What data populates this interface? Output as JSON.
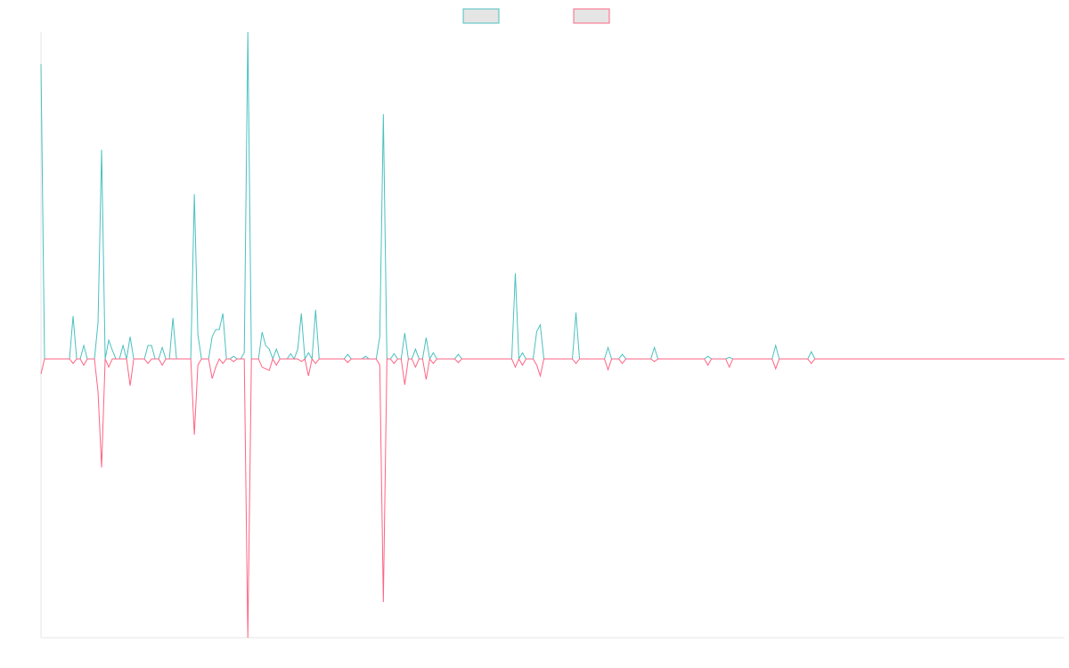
{
  "chart_data": {
    "type": "line",
    "legend": "top",
    "ylim": [
      -85.3,
      100
    ],
    "series": [
      {
        "color": "#4bc0c0",
        "values": [
          90.2,
          0,
          0,
          0,
          0,
          0,
          0,
          0,
          0,
          13.1,
          0,
          0,
          4.1,
          0,
          0,
          0,
          11.2,
          64.0,
          0,
          5.7,
          2.7,
          0,
          0,
          4.1,
          0,
          6.8,
          0,
          0,
          0,
          0,
          4.1,
          4.1,
          0,
          0,
          3.5,
          0,
          0,
          12.5,
          0,
          0,
          0,
          0,
          0,
          50.4,
          7.4,
          0,
          0,
          0,
          6.8,
          9.0,
          9.0,
          13.9,
          0,
          0,
          0.8,
          0,
          0,
          1.9,
          100,
          0,
          0,
          0,
          8.2,
          4.1,
          3.0,
          0,
          3.0,
          0,
          0,
          0,
          1.6,
          0,
          3.0,
          13.9,
          0,
          1.9,
          0,
          15.0,
          0,
          0,
          0,
          0,
          0,
          0,
          0,
          0,
          1.4,
          0,
          0,
          0,
          0,
          0.8,
          0,
          0,
          0,
          6.8,
          74.9,
          0,
          0,
          1.6,
          0,
          0,
          7.9,
          0,
          0,
          3.0,
          0,
          0,
          6.5,
          0,
          1.9,
          0,
          0,
          0,
          0,
          0,
          0,
          1.4,
          0,
          0,
          0,
          0,
          0,
          0,
          0,
          0,
          0,
          0,
          0,
          0,
          0,
          0,
          0,
          26.2,
          0,
          1.9,
          0,
          0,
          0,
          8.4,
          10.4,
          0,
          0,
          0,
          0,
          0,
          0,
          0,
          0,
          0,
          14.2,
          0,
          0,
          0,
          0,
          0,
          0,
          0,
          0,
          3.5,
          0,
          0,
          0,
          1.4,
          0,
          0,
          0,
          0,
          0,
          0,
          0,
          0,
          3.5,
          0,
          0,
          0,
          0,
          0,
          0,
          0,
          0,
          0,
          0,
          0,
          0,
          0,
          0,
          0.8,
          0,
          0,
          0,
          0,
          0,
          0.5,
          0,
          0,
          0,
          0,
          0,
          0,
          0,
          0,
          0,
          0,
          0,
          0,
          4.1,
          0,
          0,
          0,
          0,
          0,
          0,
          0,
          0,
          0,
          2.2,
          0,
          0,
          0,
          0,
          0,
          0,
          0,
          0,
          0,
          0,
          0,
          0,
          0,
          0,
          0,
          0,
          0,
          0,
          0,
          0,
          0,
          0,
          0,
          0,
          0,
          0,
          0,
          0,
          0,
          0,
          0,
          0,
          0,
          0,
          0,
          0,
          0,
          0,
          0,
          0,
          0,
          0,
          0,
          0,
          0,
          0,
          0,
          0,
          0,
          0,
          0,
          0,
          0,
          0,
          0,
          0,
          0,
          0,
          0,
          0,
          0,
          0,
          0,
          0,
          0,
          0,
          0,
          0,
          0,
          0,
          0
        ]
      },
      {
        "color": "#ff6384",
        "values": [
          -4.6,
          0,
          0,
          0,
          0,
          0,
          0,
          0,
          0,
          -1.4,
          0,
          0,
          -1.9,
          0,
          0,
          0,
          -10.1,
          -33.2,
          0,
          -2.5,
          0,
          0,
          0,
          0,
          0,
          -8.2,
          0,
          0,
          0,
          0,
          -1.4,
          0,
          0,
          0,
          -1.9,
          0,
          0,
          0,
          0,
          0,
          0,
          0,
          0,
          -23.2,
          -1.9,
          0,
          0,
          0,
          -6.0,
          -2.5,
          0,
          -1.4,
          0,
          0,
          -0.8,
          0,
          0,
          0,
          -85.3,
          0,
          0,
          0,
          -2.5,
          -3.0,
          -3.5,
          0,
          -1.9,
          0,
          0,
          0,
          0,
          0,
          0,
          -0.8,
          0,
          -5.2,
          0,
          -1.4,
          0,
          0,
          0,
          0,
          0,
          0,
          0,
          0,
          -1.1,
          0,
          0,
          0,
          0,
          0,
          0,
          0,
          0,
          -1.9,
          -74.4,
          0,
          0,
          -1.4,
          0,
          0,
          -7.9,
          0,
          0,
          -2.5,
          0,
          0,
          -6.3,
          0,
          -1.4,
          0,
          0,
          0,
          0,
          0,
          0,
          -1.1,
          0,
          0,
          0,
          0,
          0,
          0,
          0,
          0,
          0,
          0,
          0,
          0,
          0,
          0,
          0,
          -2.5,
          0,
          -1.9,
          0,
          0,
          0,
          -1.9,
          -5.2,
          0,
          0,
          0,
          0,
          0,
          0,
          0,
          0,
          0,
          -1.4,
          0,
          0,
          0,
          0,
          0,
          0,
          0,
          0,
          -3.3,
          0,
          0,
          0,
          -1.4,
          0,
          0,
          0,
          0,
          0,
          0,
          0,
          0,
          -0.8,
          0,
          0,
          0,
          0,
          0,
          0,
          0,
          0,
          0,
          0,
          0,
          0,
          0,
          0,
          -1.9,
          0,
          0,
          0,
          0,
          0,
          -2.5,
          0,
          0,
          0,
          0,
          0,
          0,
          0,
          0,
          0,
          0,
          0,
          0,
          -3.0,
          0,
          0,
          0,
          0,
          0,
          0,
          0,
          0,
          0,
          -1.4,
          0,
          0,
          0,
          0,
          0,
          0,
          0,
          0,
          0,
          0,
          0,
          0,
          0,
          0,
          0,
          0,
          0,
          0,
          0,
          0,
          0,
          0,
          0,
          0,
          0,
          0,
          0,
          0,
          0,
          0,
          0,
          0,
          0,
          0,
          0,
          0,
          0,
          0,
          0,
          0,
          0,
          0,
          0,
          0,
          0,
          0,
          0,
          0,
          0,
          0,
          0,
          0,
          0,
          0,
          0,
          0,
          0,
          0,
          0,
          0,
          0,
          0,
          0,
          0,
          0,
          0,
          0,
          0,
          0,
          0,
          0
        ]
      }
    ]
  }
}
